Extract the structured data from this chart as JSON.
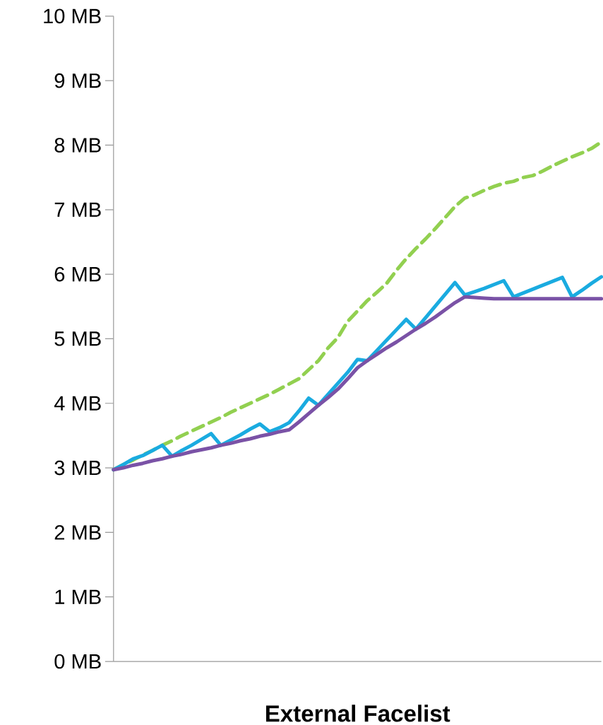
{
  "chart_data": {
    "type": "line",
    "xlabel": "External Facelist",
    "categories": [
      null,
      null,
      null,
      null,
      null,
      null,
      null,
      null,
      null,
      null,
      null,
      null,
      null,
      null,
      null,
      null,
      null,
      null,
      null,
      null,
      null,
      null,
      null,
      null,
      null,
      null,
      null,
      null,
      null,
      null,
      null,
      null,
      null,
      null,
      null,
      null,
      null,
      null,
      null,
      null,
      null,
      null,
      null,
      null,
      null,
      null,
      null,
      null,
      null,
      null,
      null
    ],
    "ylim": [
      0,
      10
    ],
    "yticks": [
      {
        "value": 0,
        "label": "0 MB"
      },
      {
        "value": 1,
        "label": "1 MB"
      },
      {
        "value": 2,
        "label": "2 MB"
      },
      {
        "value": 3,
        "label": "3 MB"
      },
      {
        "value": 4,
        "label": "4 MB"
      },
      {
        "value": 5,
        "label": "5 MB"
      },
      {
        "value": 6,
        "label": "6 MB"
      },
      {
        "value": 7,
        "label": "7 MB"
      },
      {
        "value": 8,
        "label": "8 MB"
      },
      {
        "value": 9,
        "label": "9 MB"
      },
      {
        "value": 10,
        "label": "10 MB"
      }
    ],
    "grid": false,
    "series": [
      {
        "color": "#92d050",
        "line_style": "dashed",
        "values": [
          2.97,
          3.05,
          3.12,
          3.2,
          3.27,
          3.35,
          3.42,
          3.5,
          3.57,
          3.64,
          3.71,
          3.78,
          3.86,
          3.93,
          4.0,
          4.07,
          4.14,
          4.22,
          4.3,
          4.38,
          4.52,
          4.66,
          4.86,
          5.02,
          5.27,
          5.43,
          5.59,
          5.72,
          5.86,
          6.06,
          6.24,
          6.4,
          6.55,
          6.71,
          6.88,
          7.05,
          7.18,
          7.23,
          7.3,
          7.36,
          7.41,
          7.44,
          7.5,
          7.53,
          7.6,
          7.68,
          7.75,
          7.82,
          7.88,
          7.95,
          8.05
        ]
      },
      {
        "color": "#1aabe0",
        "line_style": "solid",
        "values": [
          2.97,
          3.05,
          3.14,
          3.19,
          3.27,
          3.35,
          3.18,
          3.27,
          3.35,
          3.44,
          3.53,
          3.35,
          3.43,
          3.51,
          3.6,
          3.68,
          3.56,
          3.62,
          3.7,
          3.88,
          4.08,
          3.97,
          4.14,
          4.31,
          4.48,
          4.68,
          4.66,
          4.82,
          4.98,
          5.14,
          5.3,
          5.15,
          5.33,
          5.51,
          5.69,
          5.87,
          5.68,
          5.73,
          5.78,
          5.84,
          5.9,
          5.65,
          5.71,
          5.77,
          5.83,
          5.89,
          5.95,
          5.65,
          5.75,
          5.86,
          5.96
        ]
      },
      {
        "color": "#7a52a6",
        "line_style": "solid",
        "values": [
          2.97,
          3.0,
          3.04,
          3.07,
          3.11,
          3.14,
          3.18,
          3.21,
          3.25,
          3.28,
          3.31,
          3.35,
          3.38,
          3.42,
          3.45,
          3.49,
          3.52,
          3.56,
          3.59,
          3.71,
          3.84,
          3.97,
          4.09,
          4.22,
          4.38,
          4.55,
          4.66,
          4.76,
          4.86,
          4.95,
          5.05,
          5.15,
          5.24,
          5.34,
          5.45,
          5.56,
          5.65,
          5.64,
          5.63,
          5.62,
          5.62,
          5.62,
          5.62,
          5.62,
          5.62,
          5.62,
          5.62,
          5.62,
          5.62,
          5.62,
          5.62
        ]
      }
    ]
  }
}
